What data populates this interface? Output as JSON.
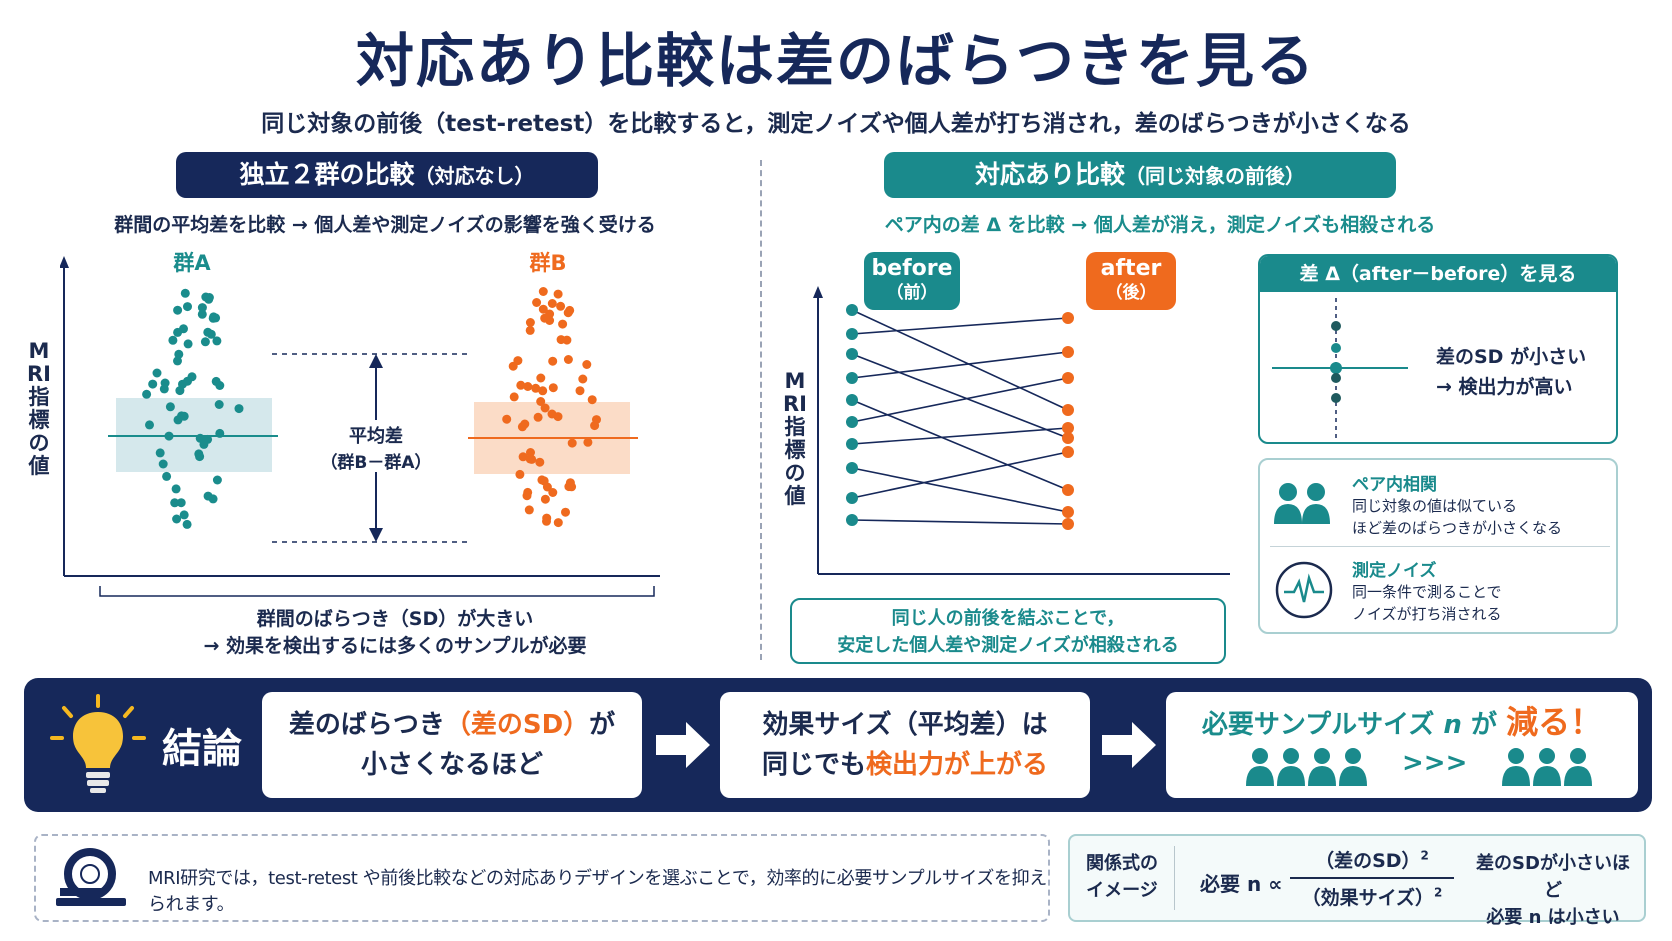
{
  "title": "対応あり比較は差のばらつきを見る",
  "subtitle": "同じ対象の前後（test-retest）を比較すると，測定ノイズや個人差が打ち消され，差のばらつきが小さくなる",
  "left": {
    "header": "独立２群の比較",
    "header_sub": "（対応なし）",
    "description": "群間の平均差を比較 → 個人差や測定ノイズの影響を強く受ける",
    "y_axis": "MRI指標の値",
    "group_a": "群A",
    "group_b": "群B",
    "mean_diff_line1": "平均差",
    "mean_diff_line2": "（群B－群A）",
    "caption_line1": "群間のばらつき（SD）が大きい",
    "caption_line2": "→ 効果を検出するには多くのサンプルが必要",
    "colors": {
      "group_a": "#1a8c8c",
      "group_b": "#ef6a1e"
    }
  },
  "right": {
    "header": "対応あり比較",
    "header_sub": "（同じ対象の前後）",
    "description": "ペア内の差 Δ を比較 → 個人差が消え，測定ノイズも相殺される",
    "y_axis": "MRI指標の値",
    "before_label": "before",
    "before_sub": "（前）",
    "after_label": "after",
    "after_sub": "（後）",
    "caption_line1": "同じ人の前後を結ぶことで，",
    "caption_line2": "安定した個人差や測定ノイズが相殺される",
    "delta_box": {
      "title": "差 Δ（after－before）を見る",
      "line1": "差のSD が小さい",
      "line2": "→ 検出力が高い"
    },
    "pair_corr": {
      "title": "ペア内相関",
      "line1": "同じ対象の値は似ている",
      "line2": "ほど差のばらつきが小さくなる"
    },
    "noise": {
      "title": "測定ノイズ",
      "line1": "同一条件で測ることで",
      "line2": "ノイズが打ち消される"
    }
  },
  "conclusion": {
    "label": "結論",
    "box1_a": "差のばらつき",
    "box1_b": "（差のSD）",
    "box1_c": "が",
    "box1_d": "小さくなるほど",
    "box2_a": "効果サイズ（平均差）は",
    "box2_b": "同じでも",
    "box2_c": "検出力が上がる",
    "box3_a": "必要サンプルサイズ",
    "box3_n": "n",
    "box3_b": "が",
    "box3_c": "減る！",
    "box3_arrow": ">>>"
  },
  "note": "MRI研究では，test-retest や前後比較などの対応ありデザインを選ぶことで，効率的に必要サンプルサイズを抑えられます。",
  "formula": {
    "label_line1": "関係式の",
    "label_line2": "イメージ",
    "lhs": "必要 n ∝",
    "numerator": "（差のSD）",
    "denominator": "（効果サイズ）",
    "exponent": "2",
    "note_line1": "差のSDが小さいほど",
    "note_line2": "必要 n は小さい"
  }
}
